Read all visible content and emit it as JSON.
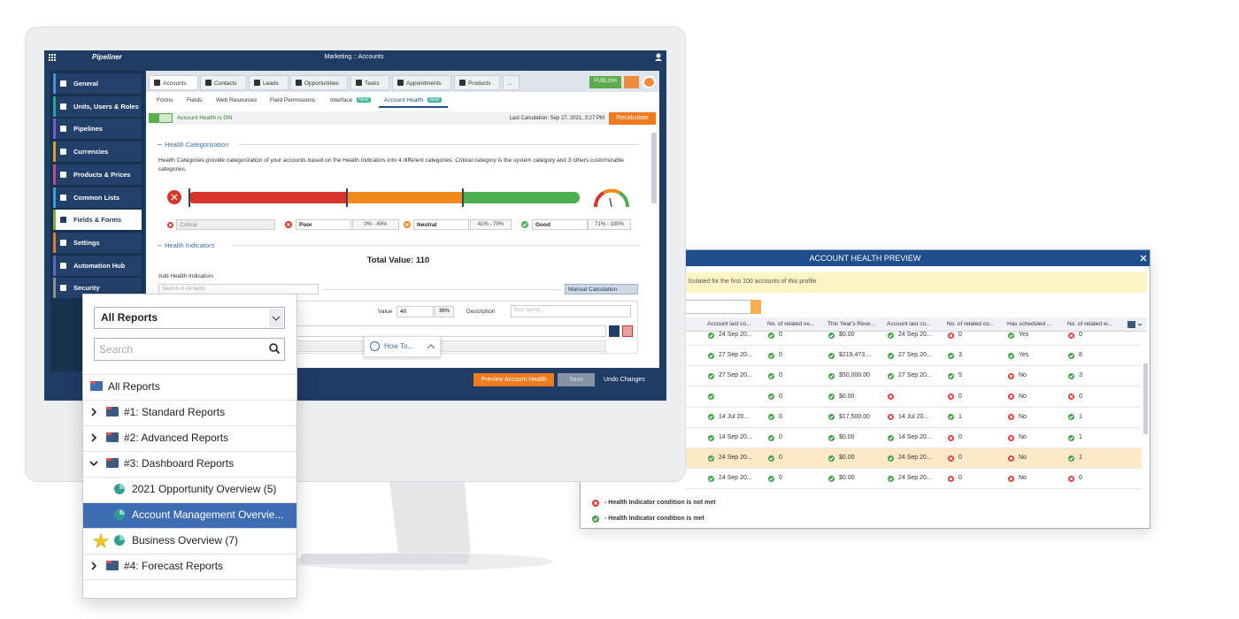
{
  "header": {
    "app": "Pipeliner",
    "breadcrumb": "Marketing :: Accounts"
  },
  "sidebar": [
    "General",
    "Units, Users & Roles",
    "Pipelines",
    "Currencies",
    "Products & Prices",
    "Common Lists",
    "Fields & Forms",
    "Settings",
    "Automation Hub",
    "Security"
  ],
  "tabs": [
    "Accounts",
    "Contacts",
    "Leads",
    "Opportunities",
    "Tasks",
    "Appointments",
    "Products",
    "..."
  ],
  "publish": "PUBLISH",
  "subtabs": [
    {
      "label": "Forms"
    },
    {
      "label": "Fields"
    },
    {
      "label": "Web Resources"
    },
    {
      "label": "Field Permissions"
    },
    {
      "label": "Interface",
      "badge": "NEW"
    },
    {
      "label": "Account Health",
      "badge": "NEW"
    }
  ],
  "status": {
    "health_on": "Account Health is ON",
    "last_calculation": "Last Calculation: Sep 27, 2021, 3:27 PM",
    "recalculate": "Recalculate"
  },
  "categorization": {
    "title": "Health Categorization",
    "description": "Health Categories provide categorization of your accounts based on the Health Indicators into 4 different categories. Critical category is the system category and 3 others customizable categories.",
    "categories": [
      {
        "name": "Critical",
        "color": "#d9342b"
      },
      {
        "name": "Poor",
        "range": "0% - 40%",
        "color": "#d9342b"
      },
      {
        "name": "Neutral",
        "range": "41% - 70%",
        "color": "#f08a1c"
      },
      {
        "name": "Good",
        "range": "71% - 100%",
        "color": "#4caf50"
      }
    ]
  },
  "indicators": {
    "title": "Health Indicators",
    "total": "Total Value: 110",
    "add_label": "Add Health Indicators",
    "search_placeholder": "Search in All fields",
    "manual": "Manual Calculation",
    "value_label": "Value",
    "value": "40",
    "percent": "36%",
    "description_label": "Description",
    "description_placeholder": "Start typing..."
  },
  "how_to": "How To...",
  "footer": {
    "preview": "Preview Account Health",
    "save": "Save",
    "undo": "Undo Changes"
  },
  "reports": {
    "selector": "All Reports",
    "search": "Search",
    "root": "All Reports",
    "folders": [
      {
        "label": "#1: Standard Reports"
      },
      {
        "label": "#2: Advanced Reports"
      },
      {
        "label": "#3: Dashboard Reports",
        "children": [
          "2021 Opportunity Overview (5)",
          "Account Management Overvie...",
          "Business Overview (7)"
        ]
      },
      {
        "label": "#4: Forecast Reports"
      }
    ]
  },
  "preview": {
    "title": "ACCOUNT HEALTH PREVIEW",
    "notice": "lculated for the first 100 accounts of this profile",
    "columns": [
      "Account last co...",
      "No. of related ov...",
      "This Year's Reve...",
      "Account last co...",
      "No. of related co...",
      "Has scheduled ...",
      "No. of related w..."
    ],
    "rows": [
      [
        {
          "icon_color": "#43a047",
          "text": "24 Sep 20..."
        },
        {
          "icon_color": "#43a047",
          "text": "0"
        },
        {
          "icon_color": "#43a047",
          "text": "$0.00"
        },
        {
          "icon_color": "#43a047",
          "text": "24 Sep 20..."
        },
        {
          "icon_color": "#e53935",
          "text": "0"
        },
        {
          "icon_color": "#43a047",
          "text": "Yes"
        },
        {
          "icon_color": "#e53935",
          "text": "0"
        }
      ],
      [
        {
          "icon_color": "#43a047",
          "text": "27 Sep 20..."
        },
        {
          "icon_color": "#43a047",
          "text": "0"
        },
        {
          "icon_color": "#43a047",
          "text": "$219,473...."
        },
        {
          "icon_color": "#43a047",
          "text": "27 Sep 20..."
        },
        {
          "icon_color": "#43a047",
          "text": "3"
        },
        {
          "icon_color": "#43a047",
          "text": "Yes"
        },
        {
          "icon_color": "#43a047",
          "text": "8"
        }
      ],
      [
        {
          "icon_color": "#43a047",
          "text": "27 Sep 20..."
        },
        {
          "icon_color": "#43a047",
          "text": "0"
        },
        {
          "icon_color": "#43a047",
          "text": "$50,000.00"
        },
        {
          "icon_color": "#43a047",
          "text": "27 Sep 20..."
        },
        {
          "icon_color": "#43a047",
          "text": "5"
        },
        {
          "icon_color": "#e53935",
          "text": "No"
        },
        {
          "icon_color": "#43a047",
          "text": "3"
        }
      ],
      [
        {
          "icon_color": "#43a047"
        },
        {
          "icon_color": "#43a047",
          "text": "0"
        },
        {
          "icon_color": "#43a047",
          "text": "$0.00"
        },
        {
          "icon_color": "#e53935"
        },
        {
          "icon_color": "#e53935",
          "text": "0"
        },
        {
          "icon_color": "#e53935",
          "text": "No"
        },
        {
          "icon_color": "#e53935",
          "text": "0"
        }
      ],
      [
        {
          "icon_color": "#43a047",
          "text": "14 Jul 20..."
        },
        {
          "icon_color": "#43a047",
          "text": "0"
        },
        {
          "icon_color": "#43a047",
          "text": "$17,500.00"
        },
        {
          "icon_color": "#e53935",
          "text": "14 Jul 20..."
        },
        {
          "icon_color": "#43a047",
          "text": "1"
        },
        {
          "icon_color": "#e53935",
          "text": "No"
        },
        {
          "icon_color": "#43a047",
          "text": "1"
        }
      ],
      [
        {
          "icon_color": "#43a047",
          "text": "14 Sep 20..."
        },
        {
          "icon_color": "#43a047",
          "text": "0"
        },
        {
          "icon_color": "#43a047",
          "text": "$0.00"
        },
        {
          "icon_color": "#43a047",
          "text": "14 Sep 20..."
        },
        {
          "icon_color": "#e53935",
          "text": "0"
        },
        {
          "icon_color": "#e53935",
          "text": "No"
        },
        {
          "icon_color": "#43a047",
          "text": "1"
        }
      ],
      [
        {
          "icon_color": "#43a047",
          "text": "24 Sep 20..."
        },
        {
          "icon_color": "#43a047",
          "text": "0"
        },
        {
          "icon_color": "#43a047",
          "text": "$0.00"
        },
        {
          "icon_color": "#43a047",
          "text": "24 Sep 20..."
        },
        {
          "icon_color": "#e53935",
          "text": "0"
        },
        {
          "icon_color": "#e53935",
          "text": "No"
        },
        {
          "icon_color": "#43a047",
          "text": "1"
        }
      ],
      [
        {
          "icon_color": "#43a047",
          "text": "24 Sep 20..."
        },
        {
          "icon_color": "#43a047",
          "text": "0"
        },
        {
          "icon_color": "#43a047",
          "text": "$0.00"
        },
        {
          "icon_color": "#43a047",
          "text": "24 Sep 20..."
        },
        {
          "icon_color": "#e53935",
          "text": "0"
        },
        {
          "icon_color": "#e53935",
          "text": "No"
        },
        {
          "icon_color": "#e53935",
          "text": "0"
        }
      ]
    ],
    "legend": [
      {
        "icon_color": "#e53935",
        "text": "- Health Indicator condition is not met"
      },
      {
        "icon_color": "#43a047",
        "text": "- Health Indicator condition is met"
      }
    ]
  }
}
